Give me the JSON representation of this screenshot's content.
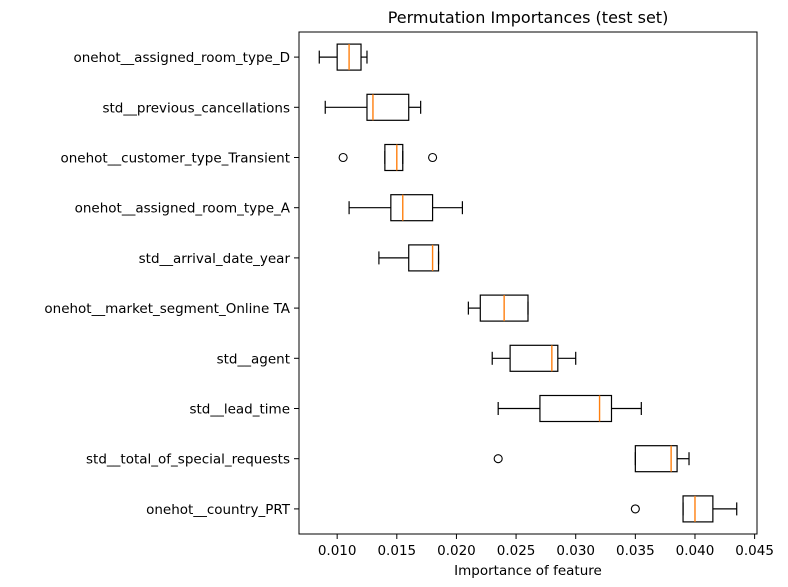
{
  "chart_data": {
    "type": "boxplot",
    "orientation": "horizontal",
    "title": "Permutation Importances (test set)",
    "xlabel": "Importance of feature",
    "ylabel": "",
    "xlim": [
      0.0068,
      0.0452
    ],
    "xticks": [
      "0.010",
      "0.015",
      "0.020",
      "0.025",
      "0.030",
      "0.035",
      "0.040",
      "0.045"
    ],
    "colors": {
      "box": "#000000",
      "median": "#ff7f0e",
      "background": "#ffffff"
    },
    "categories": [
      "onehot__assigned_room_type_D",
      "std__previous_cancellations",
      "onehot__customer_type_Transient",
      "onehot__assigned_room_type_A",
      "std__arrival_date_year",
      "onehot__market_segment_Online TA",
      "std__agent",
      "std__lead_time",
      "std__total_of_special_requests",
      "onehot__country_PRT"
    ],
    "boxes": [
      {
        "whislo": 0.0085,
        "q1": 0.01,
        "med": 0.011,
        "q3": 0.012,
        "whishi": 0.0125,
        "fliers": []
      },
      {
        "whislo": 0.009,
        "q1": 0.0125,
        "med": 0.013,
        "q3": 0.016,
        "whishi": 0.017,
        "fliers": []
      },
      {
        "whislo": 0.014,
        "q1": 0.014,
        "med": 0.015,
        "q3": 0.0155,
        "whishi": 0.0155,
        "fliers": [
          0.0105,
          0.018
        ]
      },
      {
        "whislo": 0.011,
        "q1": 0.0145,
        "med": 0.0155,
        "q3": 0.018,
        "whishi": 0.0205,
        "fliers": []
      },
      {
        "whislo": 0.0135,
        "q1": 0.016,
        "med": 0.018,
        "q3": 0.0185,
        "whishi": 0.0185,
        "fliers": []
      },
      {
        "whislo": 0.021,
        "q1": 0.022,
        "med": 0.024,
        "q3": 0.026,
        "whishi": 0.026,
        "fliers": []
      },
      {
        "whislo": 0.023,
        "q1": 0.0245,
        "med": 0.028,
        "q3": 0.0285,
        "whishi": 0.03,
        "fliers": []
      },
      {
        "whislo": 0.0235,
        "q1": 0.027,
        "med": 0.032,
        "q3": 0.033,
        "whishi": 0.0355,
        "fliers": []
      },
      {
        "whislo": 0.035,
        "q1": 0.035,
        "med": 0.038,
        "q3": 0.0385,
        "whishi": 0.0395,
        "fliers": [
          0.0235
        ]
      },
      {
        "whislo": 0.039,
        "q1": 0.039,
        "med": 0.04,
        "q3": 0.0415,
        "whishi": 0.0435,
        "fliers": [
          0.035
        ]
      }
    ]
  }
}
